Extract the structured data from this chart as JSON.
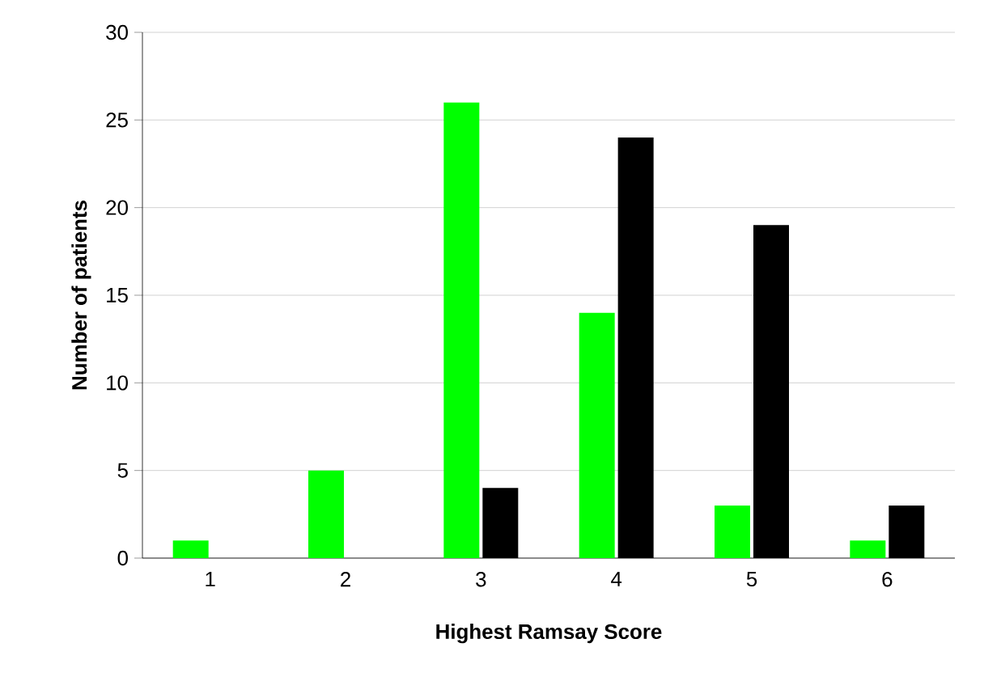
{
  "chart_data": {
    "type": "bar",
    "xlabel": "Highest Ramsay Score",
    "ylabel": "Number of patients",
    "categories": [
      "1",
      "2",
      "3",
      "4",
      "5",
      "6"
    ],
    "series": [
      {
        "color": "#00ff00",
        "values": [
          1,
          5,
          26,
          14,
          3,
          1
        ]
      },
      {
        "color": "#000000",
        "values": [
          0,
          0,
          4,
          24,
          19,
          3
        ]
      }
    ],
    "ylim": [
      0,
      30
    ],
    "yticks": [
      0,
      5,
      10,
      15,
      20,
      25,
      30
    ],
    "grid": "y"
  }
}
